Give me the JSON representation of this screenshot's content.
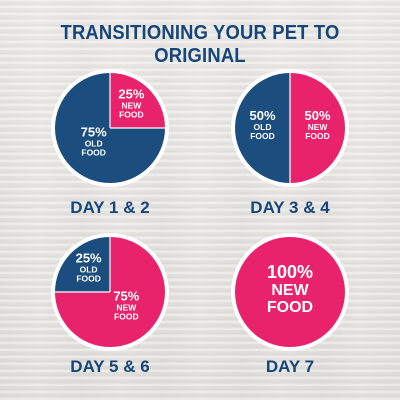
{
  "title": "TRANSITIONING YOUR PET TO ORIGINAL",
  "colors": {
    "old_food": "#1b4d7e",
    "new_food": "#e8226b",
    "ring": "#ffffff",
    "title": "#15457a"
  },
  "chart_data": [
    {
      "type": "pie",
      "title": "DAY 1 & 2",
      "slices": [
        {
          "name": "NEW FOOD",
          "value": 25,
          "label_pct": "25%",
          "label_line1": "NEW",
          "label_line2": "FOOD"
        },
        {
          "name": "OLD FOOD",
          "value": 75,
          "label_pct": "75%",
          "label_line1": "OLD",
          "label_line2": "FOOD"
        }
      ]
    },
    {
      "type": "pie",
      "title": "DAY 3 & 4",
      "slices": [
        {
          "name": "NEW FOOD",
          "value": 50,
          "label_pct": "50%",
          "label_line1": "NEW",
          "label_line2": "FOOD"
        },
        {
          "name": "OLD FOOD",
          "value": 50,
          "label_pct": "50%",
          "label_line1": "OLD",
          "label_line2": "FOOD"
        }
      ]
    },
    {
      "type": "pie",
      "title": "DAY 5 & 6",
      "slices": [
        {
          "name": "NEW FOOD",
          "value": 75,
          "label_pct": "75%",
          "label_line1": "NEW",
          "label_line2": "FOOD"
        },
        {
          "name": "OLD FOOD",
          "value": 25,
          "label_pct": "25%",
          "label_line1": "OLD",
          "label_line2": "FOOD"
        }
      ]
    },
    {
      "type": "pie",
      "title": "DAY 7",
      "slices": [
        {
          "name": "NEW FOOD",
          "value": 100,
          "label_pct": "100%",
          "label_line1": "NEW",
          "label_line2": "FOOD"
        }
      ]
    }
  ]
}
